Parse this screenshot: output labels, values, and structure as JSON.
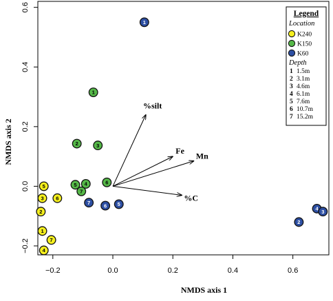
{
  "chart_data": {
    "type": "scatter",
    "xlabel": "NMDS axis 1",
    "ylabel": "NMDS axis 2",
    "xlim": [
      -0.25,
      0.72
    ],
    "ylim": [
      -0.23,
      0.62
    ],
    "xticks": [
      -0.2,
      0.0,
      0.2,
      0.4,
      0.6
    ],
    "xtick_labels": [
      "−0.2",
      "0.0",
      "0.2",
      "0.4",
      "0.6"
    ],
    "yticks": [
      -0.2,
      0.0,
      0.2,
      0.4,
      0.6
    ],
    "ytick_labels": [
      "−0.2",
      "0.0",
      "0.2",
      "0.4",
      "0.6"
    ],
    "grid": false,
    "legend_position": "top-right",
    "series": [
      {
        "name": "K240",
        "color": "#f5ef1e",
        "points": [
          {
            "x": -0.23,
            "y": 0.0,
            "label": "5"
          },
          {
            "x": -0.235,
            "y": -0.04,
            "label": "3"
          },
          {
            "x": -0.185,
            "y": -0.04,
            "label": "6"
          },
          {
            "x": -0.24,
            "y": -0.085,
            "label": "2"
          },
          {
            "x": -0.235,
            "y": -0.15,
            "label": "1"
          },
          {
            "x": -0.205,
            "y": -0.18,
            "label": "7"
          },
          {
            "x": -0.23,
            "y": -0.215,
            "label": "4"
          }
        ]
      },
      {
        "name": "K150",
        "color": "#55b848",
        "points": [
          {
            "x": -0.065,
            "y": 0.315,
            "label": "1"
          },
          {
            "x": -0.12,
            "y": 0.143,
            "label": "2"
          },
          {
            "x": -0.05,
            "y": 0.137,
            "label": "3"
          },
          {
            "x": -0.125,
            "y": 0.005,
            "label": "5"
          },
          {
            "x": -0.09,
            "y": 0.008,
            "label": "4"
          },
          {
            "x": -0.105,
            "y": -0.017,
            "label": "7"
          },
          {
            "x": -0.02,
            "y": 0.013,
            "label": "6"
          }
        ]
      },
      {
        "name": "K60",
        "color": "#2d4fa3",
        "points": [
          {
            "x": 0.105,
            "y": 0.55,
            "label": "1"
          },
          {
            "x": -0.08,
            "y": -0.055,
            "label": "7"
          },
          {
            "x": -0.025,
            "y": -0.065,
            "label": "6"
          },
          {
            "x": 0.02,
            "y": -0.06,
            "label": "5"
          },
          {
            "x": 0.62,
            "y": -0.12,
            "label": "2"
          },
          {
            "x": 0.68,
            "y": -0.075,
            "label": "4"
          },
          {
            "x": 0.7,
            "y": -0.085,
            "label": "3"
          }
        ]
      }
    ],
    "vectors": [
      {
        "label": "%silt",
        "x": 0.11,
        "y": 0.24
      },
      {
        "label": "Fe",
        "x": 0.2,
        "y": 0.1
      },
      {
        "label": "Mn",
        "x": 0.27,
        "y": 0.085
      },
      {
        "label": "%C",
        "x": 0.23,
        "y": -0.03
      }
    ],
    "legend": {
      "title": "Legend",
      "location_heading": "Location",
      "depth_heading": "Depth",
      "depths": [
        {
          "num": "1",
          "text": "1.5m"
        },
        {
          "num": "2",
          "text": "3.1m"
        },
        {
          "num": "3",
          "text": "4.6m"
        },
        {
          "num": "4",
          "text": "6.1m"
        },
        {
          "num": "5",
          "text": "7.6m"
        },
        {
          "num": "6",
          "text": "10.7m"
        },
        {
          "num": "7",
          "text": "15.2m"
        }
      ]
    }
  }
}
